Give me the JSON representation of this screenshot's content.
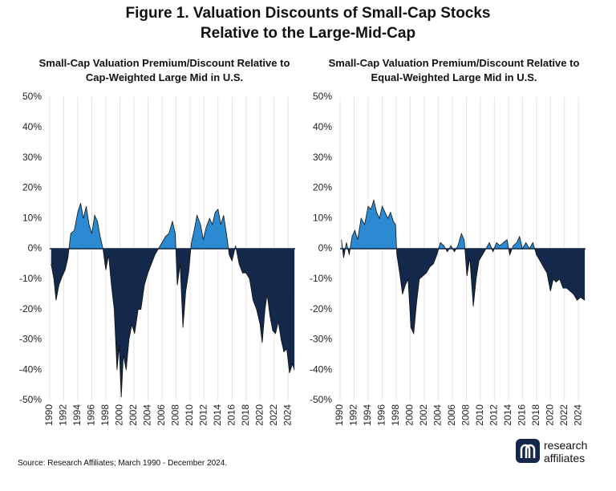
{
  "title": [
    "Figure 1. Valuation Discounts of Small-Cap Stocks",
    "Relative to the Large-Mid-Cap"
  ],
  "source": "Source: Research Affiliates; March 1990 - December 2024.",
  "logo": [
    "research",
    "affiliates"
  ],
  "chart_data": [
    {
      "type": "area",
      "title": [
        "Small-Cap Valuation Premium/Discount Relative to",
        "Cap-Weighted Large Mid in U.S."
      ],
      "color_positive": "#2b8ad2",
      "color_negative": "#14284b",
      "grid": "x",
      "xlim": [
        1990,
        2025
      ],
      "xticks": [
        1990,
        1992,
        1994,
        1996,
        1998,
        2000,
        2002,
        2004,
        2006,
        2008,
        2010,
        2012,
        2014,
        2016,
        2018,
        2020,
        2022,
        2024
      ],
      "ylim": [
        -50,
        50
      ],
      "yticks": [
        {
          "value": -50,
          "label": "-50%"
        },
        {
          "value": -40,
          "label": "-40%"
        },
        {
          "value": -30,
          "label": "-30%"
        },
        {
          "value": -20,
          "label": "-20%"
        },
        {
          "value": -10,
          "label": "-10%"
        },
        {
          "value": 0,
          "label": "0%"
        },
        {
          "value": 10,
          "label": "10%"
        },
        {
          "value": 20,
          "label": "20%"
        },
        {
          "value": 30,
          "label": "30%"
        },
        {
          "value": 40,
          "label": "40%"
        },
        {
          "value": 50,
          "label": "50%"
        }
      ],
      "x": [
        1990.2,
        1990.6,
        1990.9,
        1991.3,
        1991.8,
        1992.2,
        1992.6,
        1993.0,
        1993.5,
        1994.0,
        1994.4,
        1994.8,
        1995.2,
        1995.6,
        1996.0,
        1996.4,
        1996.8,
        1997.2,
        1997.6,
        1998.0,
        1998.4,
        1998.8,
        1999.2,
        1999.6,
        1999.9,
        2000.2,
        2000.5,
        2000.9,
        2001.3,
        2001.7,
        2002.1,
        2002.6,
        2003.0,
        2003.5,
        2004.0,
        2004.5,
        2005.0,
        2005.5,
        2006.0,
        2006.5,
        2007.0,
        2007.5,
        2007.9,
        2008.2,
        2008.6,
        2009.0,
        2009.4,
        2009.8,
        2010.2,
        2010.6,
        2011.0,
        2011.5,
        2011.9,
        2012.3,
        2012.8,
        2013.2,
        2013.6,
        2014.0,
        2014.4,
        2014.8,
        2015.2,
        2015.6,
        2016.0,
        2016.5,
        2017.0,
        2017.5,
        2018.0,
        2018.5,
        2019.0,
        2019.5,
        2020.0,
        2020.3,
        2020.7,
        2021.0,
        2021.4,
        2021.8,
        2022.2,
        2022.6,
        2023.0,
        2023.4,
        2023.8,
        2024.2,
        2024.6,
        2024.9
      ],
      "values": [
        -5,
        -10,
        -17,
        -12,
        -9,
        -7,
        -3,
        5,
        6,
        12,
        15,
        10,
        14,
        8,
        5,
        11,
        9,
        4,
        0,
        -7,
        -2,
        -12,
        -20,
        -40,
        -32,
        -49,
        -35,
        -40,
        -30,
        -25,
        -28,
        -20,
        -20,
        -12,
        -8,
        -5,
        -2,
        0,
        2,
        4,
        5,
        9,
        5,
        -12,
        -5,
        -26,
        -14,
        -8,
        2,
        6,
        11,
        8,
        3,
        7,
        10,
        8,
        12,
        13,
        8,
        11,
        5,
        -2,
        -4,
        1,
        -5,
        -8,
        -8,
        -10,
        -17,
        -20,
        -25,
        -31,
        -20,
        -15,
        -22,
        -27,
        -28,
        -24,
        -30,
        -34,
        -33,
        -41,
        -38,
        -40
      ]
    },
    {
      "type": "area",
      "title": [
        "Small-Cap Valuation Premium/Discount Relative to",
        "Equal-Weighted Large Mid in U.S."
      ],
      "color_positive": "#2b8ad2",
      "color_negative": "#14284b",
      "grid": "x",
      "xlim": [
        1990,
        2025
      ],
      "xticks": [
        1990,
        1992,
        1994,
        1996,
        1998,
        2000,
        2002,
        2004,
        2006,
        2008,
        2010,
        2012,
        2014,
        2016,
        2018,
        2020,
        2022,
        2024
      ],
      "ylim": [
        -50,
        50
      ],
      "yticks": [
        {
          "value": -50,
          "label": "-50%"
        },
        {
          "value": -40,
          "label": "-40%"
        },
        {
          "value": -30,
          "label": "-30%"
        },
        {
          "value": -20,
          "label": "-20%"
        },
        {
          "value": -10,
          "label": "-10%"
        },
        {
          "value": 0,
          "label": "0%"
        },
        {
          "value": 10,
          "label": "10%"
        },
        {
          "value": 20,
          "label": "20%"
        },
        {
          "value": 30,
          "label": "30%"
        },
        {
          "value": 40,
          "label": "40%"
        },
        {
          "value": 50,
          "label": "50%"
        }
      ],
      "x": [
        1990.2,
        1990.5,
        1990.9,
        1991.3,
        1991.7,
        1992.1,
        1992.5,
        1993.0,
        1993.5,
        1994.0,
        1994.4,
        1994.8,
        1995.2,
        1995.6,
        1996.0,
        1996.4,
        1996.8,
        1997.2,
        1997.6,
        1997.9,
        1998.1,
        1998.5,
        1998.9,
        1999.3,
        1999.7,
        2000.1,
        2000.5,
        2000.9,
        2001.3,
        2001.8,
        2002.3,
        2002.8,
        2003.3,
        2003.8,
        2004.3,
        2004.8,
        2005.3,
        2005.8,
        2006.3,
        2006.8,
        2007.3,
        2007.7,
        2008.1,
        2008.5,
        2009.0,
        2009.4,
        2009.8,
        2010.3,
        2010.8,
        2011.3,
        2011.8,
        2012.3,
        2012.8,
        2013.3,
        2013.8,
        2014.2,
        2014.7,
        2015.2,
        2015.6,
        2016.0,
        2016.5,
        2017.0,
        2017.5,
        2018.0,
        2018.5,
        2019.0,
        2019.5,
        2020.0,
        2020.4,
        2020.8,
        2021.3,
        2021.8,
        2022.3,
        2022.8,
        2023.3,
        2023.8,
        2024.3,
        2024.9
      ],
      "values": [
        3,
        -3,
        2,
        -2,
        4,
        6,
        3,
        10,
        8,
        14,
        13,
        16,
        12,
        10,
        14,
        12,
        10,
        12,
        9,
        8,
        -2,
        -8,
        -15,
        -12,
        -10,
        -26,
        -28,
        -18,
        -10,
        -9,
        -8,
        -6,
        -5,
        -2,
        2,
        1,
        -1,
        1,
        -1,
        1,
        5,
        3,
        -9,
        -3,
        -19,
        -10,
        -4,
        -2,
        0,
        2,
        -1,
        2,
        1,
        2,
        3,
        -2,
        1,
        2,
        4,
        0,
        2,
        0,
        2,
        -2,
        -4,
        -6,
        -8,
        -14,
        -10,
        -11,
        -10,
        -13,
        -13,
        -14,
        -15,
        -17,
        -16,
        -17
      ]
    }
  ]
}
